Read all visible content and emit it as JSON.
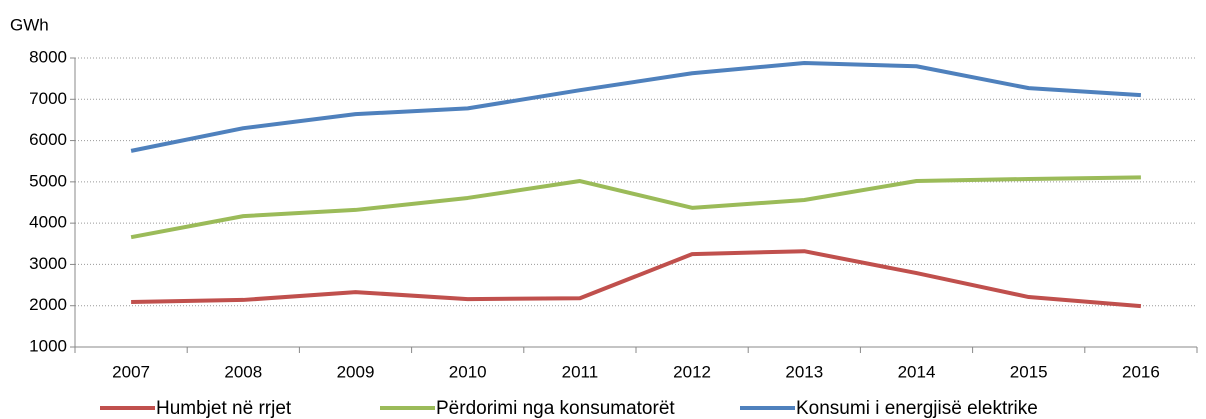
{
  "chart_data": {
    "type": "line",
    "y_label": "GWh",
    "categories": [
      "2007",
      "2008",
      "2009",
      "2010",
      "2011",
      "2012",
      "2013",
      "2014",
      "2015",
      "2016"
    ],
    "series": [
      {
        "name": "Humbjet në rrjet",
        "color": "#c0504d",
        "values": [
          2090,
          2140,
          2330,
          2160,
          2180,
          3250,
          3320,
          2790,
          2210,
          1990
        ]
      },
      {
        "name": "Përdorimi nga konsumatorët",
        "color": "#9bbb59",
        "values": [
          3660,
          4170,
          4320,
          4610,
          5020,
          4370,
          4560,
          5020,
          5070,
          5110
        ]
      },
      {
        "name": "Konsumi i energjisë elektrike",
        "color": "#4f81bd",
        "values": [
          5750,
          6300,
          6640,
          6780,
          7220,
          7630,
          7880,
          7800,
          7270,
          7100
        ]
      }
    ],
    "ylim": [
      1000,
      8000
    ],
    "yticks": [
      1000,
      2000,
      3000,
      4000,
      5000,
      6000,
      7000,
      8000
    ],
    "grid": true,
    "legend": "bottom"
  }
}
